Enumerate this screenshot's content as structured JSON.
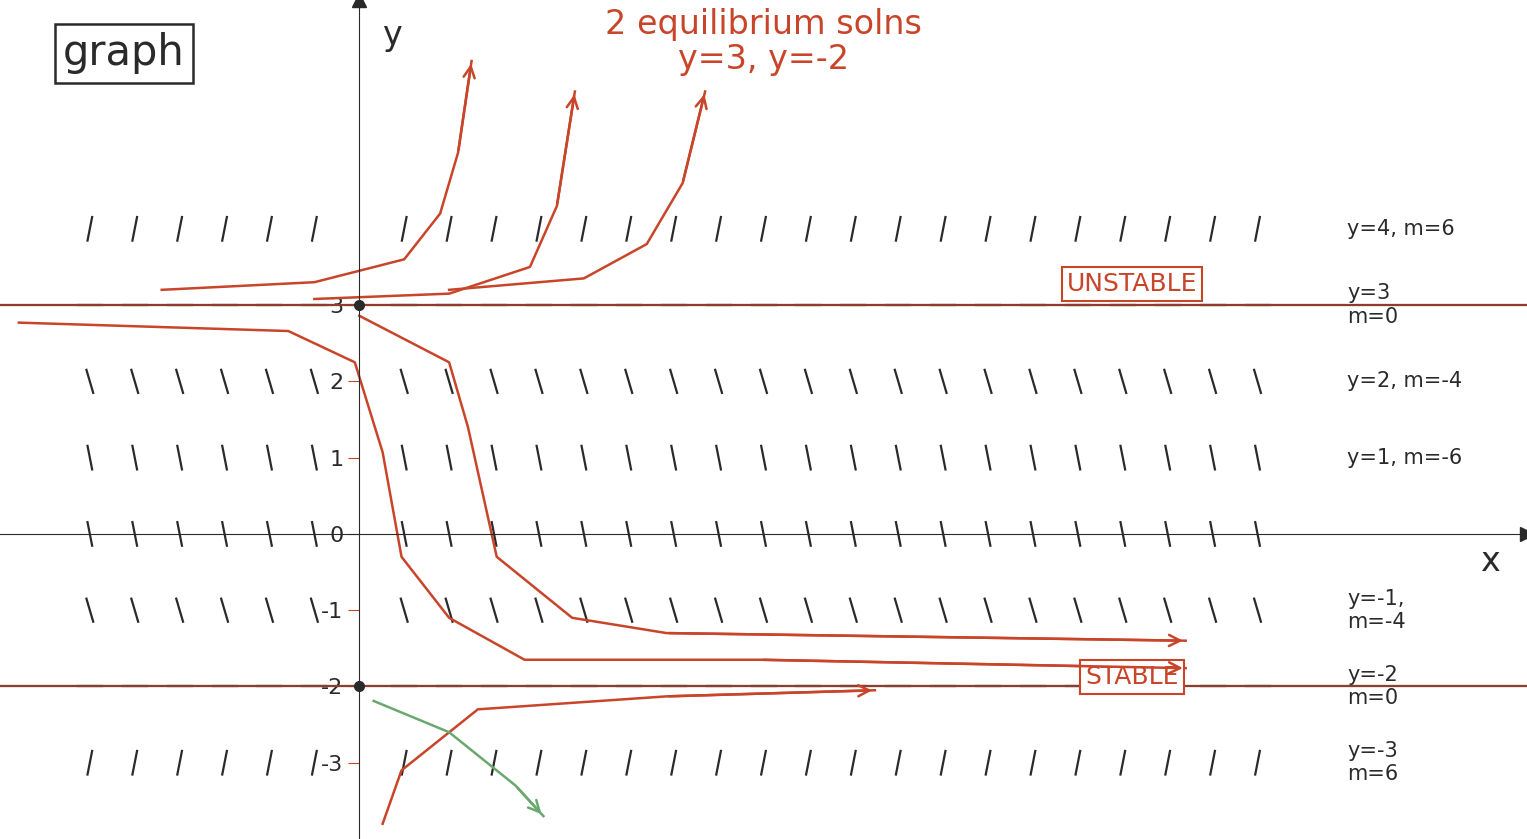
{
  "chart_data": {
    "type": "slope_field",
    "title": "graph",
    "annotation": "2 equilibrium solns\ny=3, y=-2",
    "x_label": "x",
    "y_label": "y",
    "xlim": [
      -4,
      13
    ],
    "ylim": [
      -4,
      7
    ],
    "xticks": [],
    "yticks": [
      -3,
      -2,
      -1,
      0,
      1,
      2,
      3
    ],
    "tick_labels": "y",
    "grid": false,
    "equilibria": [
      {
        "y": 3,
        "label": "UNSTABLE"
      },
      {
        "y": -2,
        "label": "STABLE"
      }
    ],
    "mark_x": [
      -3,
      -2.5,
      -2,
      -1.5,
      -1,
      -0.5,
      0.5,
      1,
      1.5,
      2,
      2.5,
      3,
      3.5,
      4,
      4.5,
      5,
      5.5,
      6,
      6.5,
      7,
      7.5,
      8,
      8.5,
      9,
      9.5,
      10
    ],
    "slope_rows": [
      {
        "y": 4,
        "m": 6,
        "label": "y=4, m=6"
      },
      {
        "y": 3,
        "m": 0,
        "label": "y=3\nm=0"
      },
      {
        "y": 2,
        "m": -4,
        "label": "y=2, m=-4"
      },
      {
        "y": 1,
        "m": -6,
        "label": "y=1, m=-6"
      },
      {
        "y": 0,
        "m": -6
      },
      {
        "y": -1,
        "m": -4,
        "label": "y=-1,\nm=-4"
      },
      {
        "y": -2,
        "m": 0,
        "label": "y=-2\nm=0"
      },
      {
        "y": -3,
        "m": 6,
        "label": "y=-3\nm=6"
      }
    ],
    "series": [
      {
        "color": "#c8452a",
        "x": [
          -2.2,
          -0.5,
          0.5,
          0.9,
          1.1,
          1.25
        ],
        "values": [
          3.2,
          3.3,
          3.6,
          4.2,
          5.0,
          6.2
        ]
      },
      {
        "color": "#c8452a",
        "x": [
          -0.5,
          1.0,
          1.9,
          2.2,
          2.4
        ],
        "values": [
          3.08,
          3.15,
          3.5,
          4.3,
          5.8
        ]
      },
      {
        "color": "#c8452a",
        "x": [
          1.0,
          2.5,
          3.2,
          3.6,
          3.85
        ],
        "values": [
          3.2,
          3.35,
          3.8,
          4.6,
          5.8
        ]
      },
      {
        "color": "#c8452a",
        "x": [
          -3.79,
          -0.79,
          -0.05,
          0.26,
          0.47,
          1.0,
          1.84,
          4.47,
          9.2
        ],
        "values": [
          2.77,
          2.66,
          2.25,
          1.07,
          -0.3,
          -1.1,
          -1.65,
          -1.65,
          -1.76
        ]
      },
      {
        "color": "#c8452a",
        "x": [
          0.0,
          1.0,
          1.21,
          1.53,
          2.37,
          3.42,
          9.2
        ],
        "values": [
          2.86,
          2.25,
          1.4,
          -0.3,
          -1.1,
          -1.3,
          -1.4
        ]
      },
      {
        "color": "#c8452a",
        "x": [
          0.26,
          0.47,
          1.32,
          3.42,
          5.74
        ],
        "values": [
          -3.8,
          -3.1,
          -2.3,
          -2.13,
          -2.05
        ]
      },
      {
        "color": "#6aa870",
        "x": [
          0.16,
          1.0,
          1.74,
          2.05
        ],
        "values": [
          -2.19,
          -2.6,
          -3.3,
          -3.7
        ]
      }
    ]
  }
}
